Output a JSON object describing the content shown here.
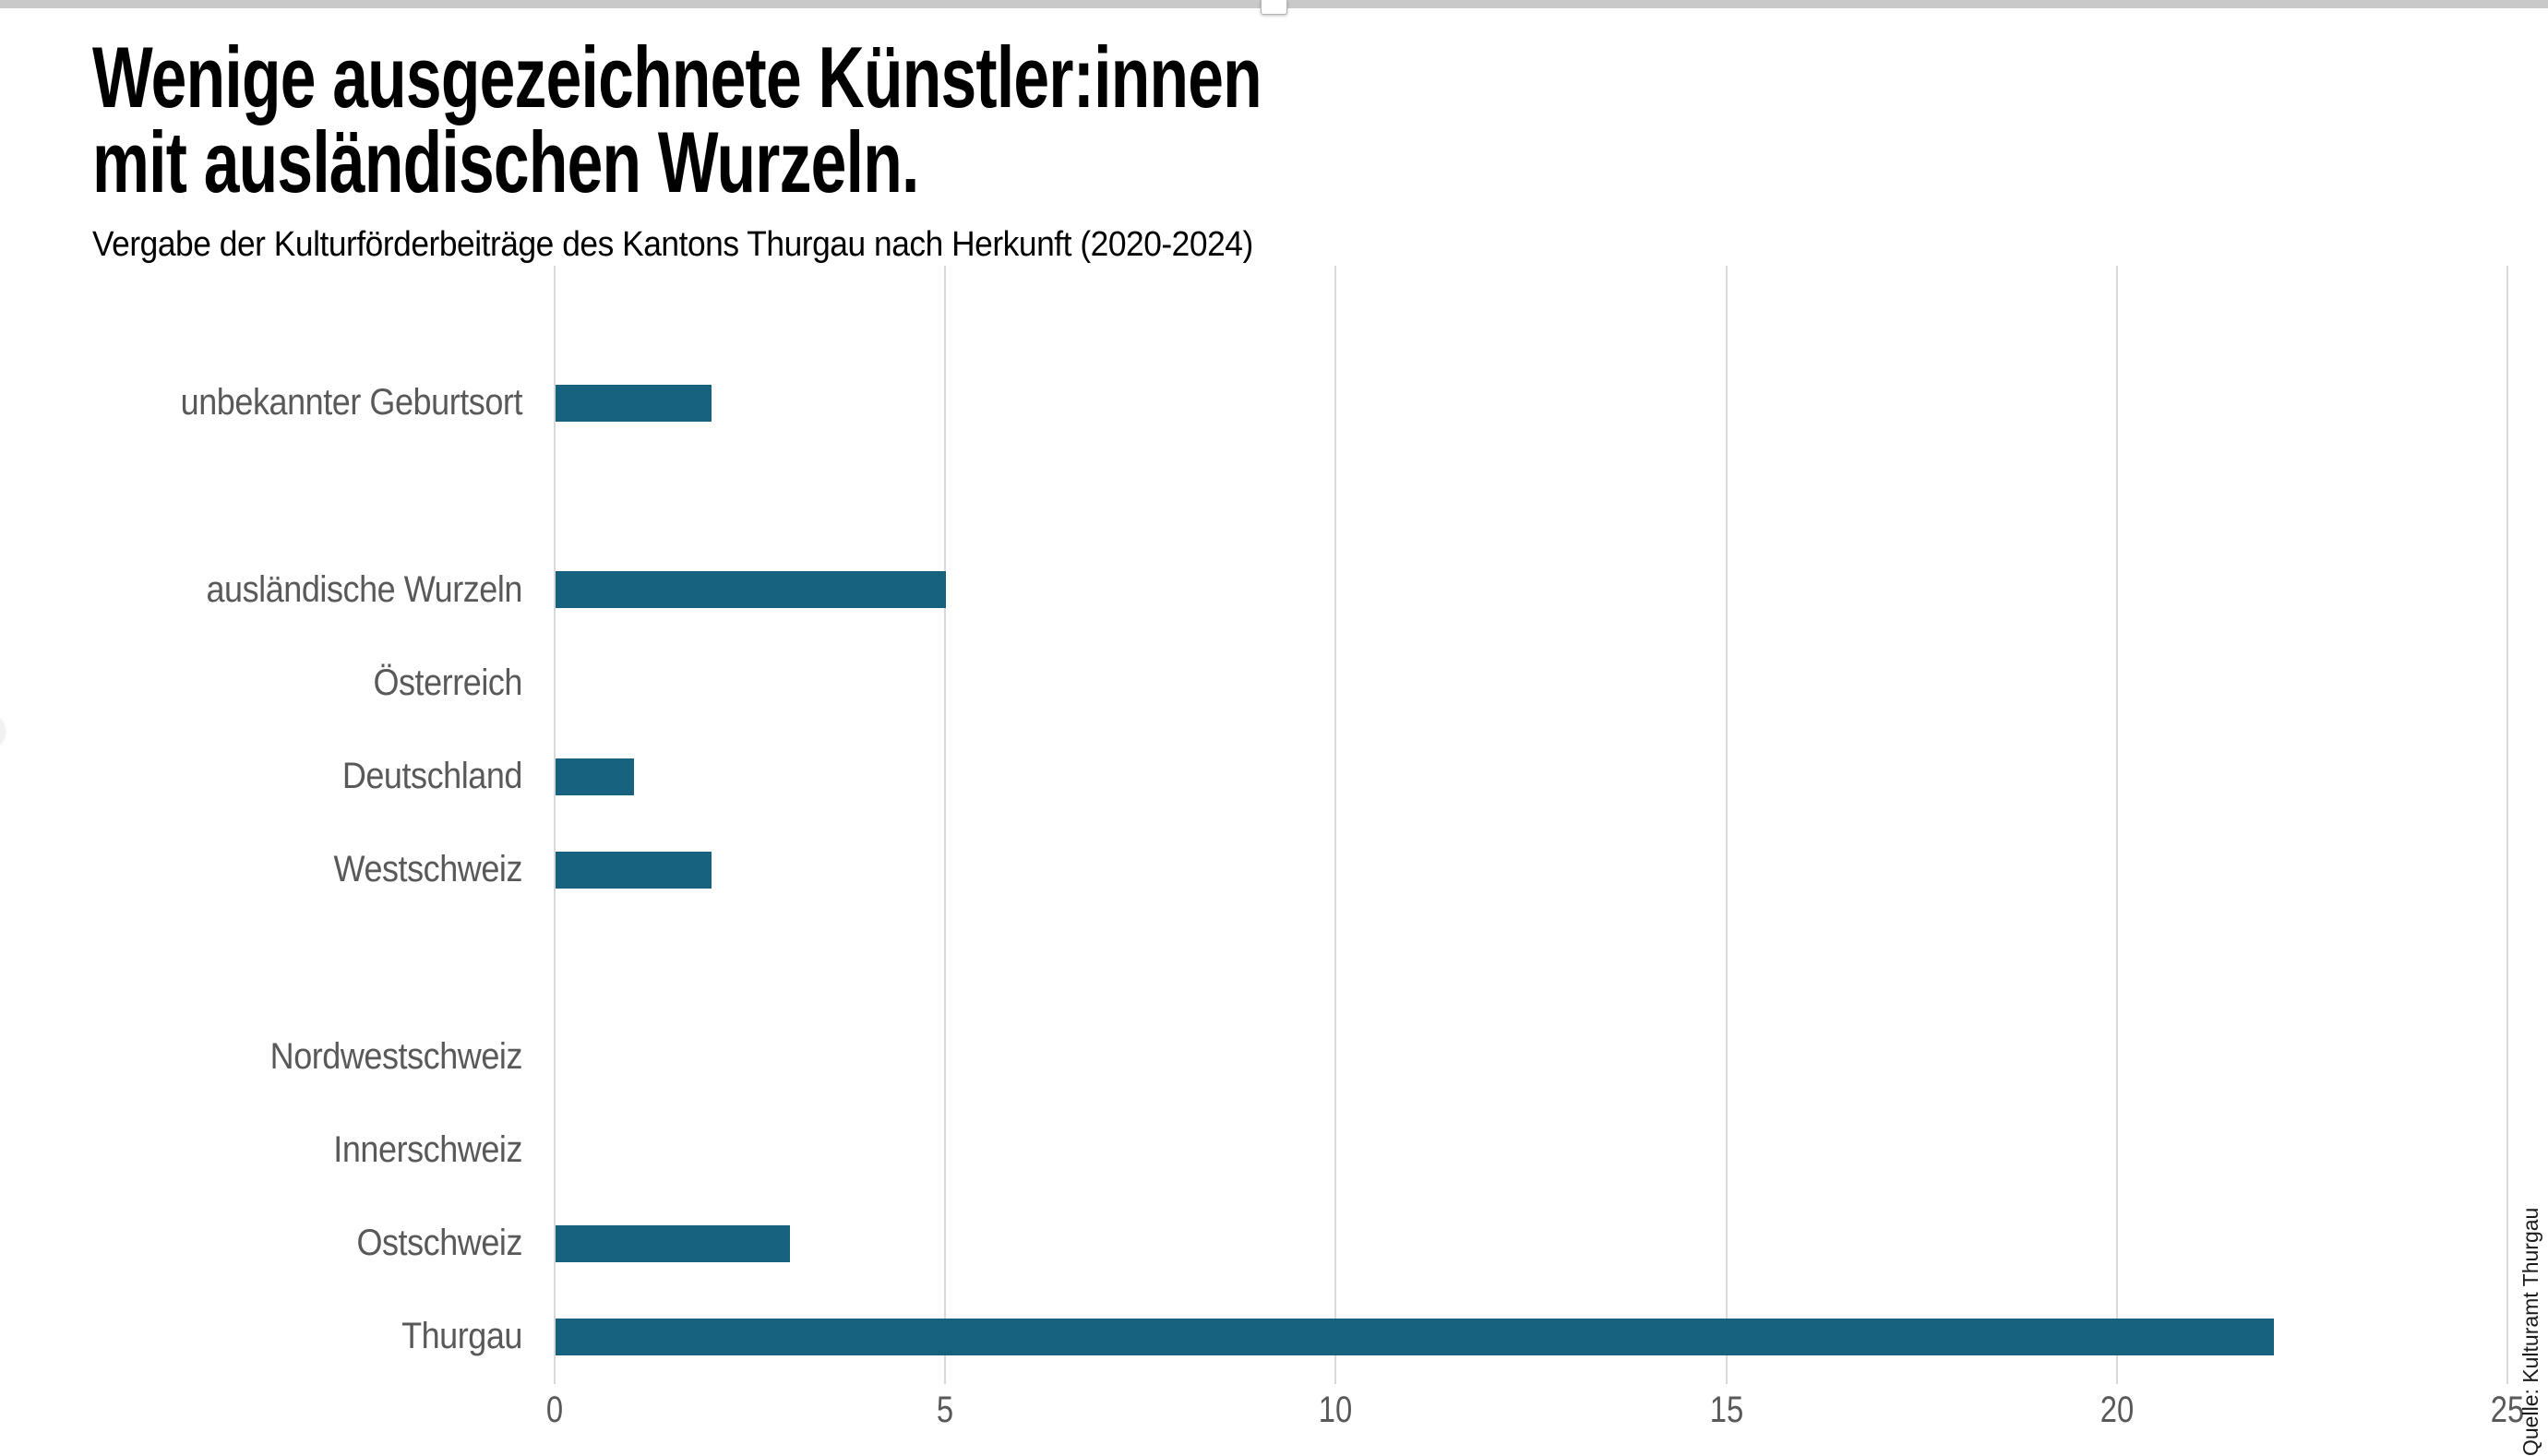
{
  "top_bar": {
    "color": "#c9c9c9",
    "handle_color": "#ffffff"
  },
  "header": {
    "title_lines": [
      "Wenige ausgezeichnete Künstler:innen",
      "mit ausländischen Wurzeln."
    ],
    "subtitle": "Vergabe der Kulturförderbeiträge des Kantons Thurgau nach Herkunft (2020-2024)"
  },
  "chart_data": {
    "type": "bar",
    "orientation": "horizontal",
    "title": "Wenige ausgezeichnete Künstler:innen mit ausländischen Wurzeln.",
    "subtitle": "Vergabe der Kulturförderbeiträge des Kantons Thurgau nach Herkunft (2020-2024)",
    "groups": [
      {
        "items": [
          {
            "label": "unbekannter Geburtsort",
            "value": 2
          }
        ]
      },
      {
        "items": [
          {
            "label": "ausländische Wurzeln",
            "value": 5
          },
          {
            "label": "Österreich",
            "value": 0
          },
          {
            "label": "Deutschland",
            "value": 1
          },
          {
            "label": "Westschweiz",
            "value": 2
          }
        ]
      },
      {
        "items": [
          {
            "label": "Nordwestschweiz",
            "value": 0
          },
          {
            "label": "Innerschweiz",
            "value": 0
          },
          {
            "label": "Ostschweiz",
            "value": 3
          },
          {
            "label": "Thurgau",
            "value": 22
          }
        ]
      }
    ],
    "x_ticks": [
      0,
      5,
      10,
      15,
      20,
      25
    ],
    "xlim": [
      0,
      25
    ],
    "grid": true,
    "legend": "none",
    "bar_color": "#17637F",
    "grid_color": "#d9d9d9",
    "label_color": "#595959",
    "source": "Quelle: Kulturamt Thurgau"
  }
}
